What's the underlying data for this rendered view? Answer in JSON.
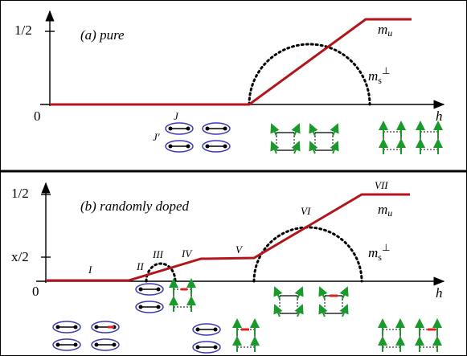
{
  "panels": [
    {
      "label": "(a) pure",
      "y_ticks": [
        "1/2"
      ],
      "origin": "0",
      "x_axis": "h",
      "curve_labels": [
        {
          "symbol": "m",
          "subscript": "u"
        },
        {
          "symbol": "m",
          "subscript": "s",
          "superscript": "⊥"
        }
      ],
      "bond_labels": [
        "J",
        "J′"
      ]
    },
    {
      "label": "(b) randomly doped",
      "y_ticks": [
        "1/2",
        "x/2"
      ],
      "origin": "0",
      "x_axis": "h",
      "regions": [
        "I",
        "II",
        "III",
        "IV",
        "V",
        "VI",
        "VII"
      ],
      "curve_labels": [
        {
          "symbol": "m",
          "subscript": "u"
        },
        {
          "symbol": "m",
          "subscript": "s",
          "superscript": "⊥"
        }
      ]
    }
  ]
}
